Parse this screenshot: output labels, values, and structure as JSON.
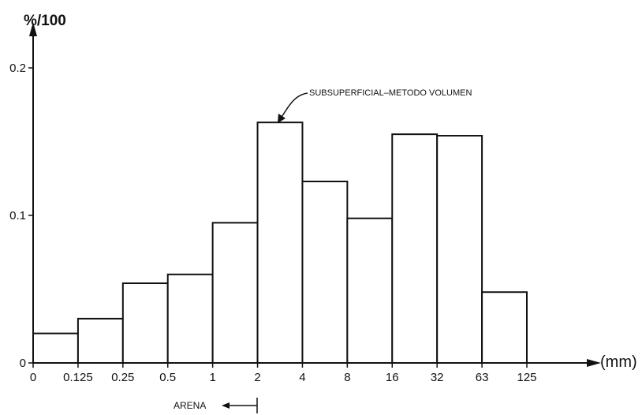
{
  "chart_data": {
    "type": "bar",
    "ylabel": "%/100",
    "xlabel": "(mm)",
    "ylim": [
      0,
      0.2
    ],
    "y_ticks": [
      "0",
      "0.1",
      "0.2"
    ],
    "x_ticks": [
      "0",
      "0.125",
      "0.25",
      "0.5",
      "1",
      "2",
      "4",
      "8",
      "16",
      "32",
      "63",
      "125"
    ],
    "categories": [
      "0–0.125",
      "0.125–0.25",
      "0.25–0.5",
      "0.5–1",
      "1–2",
      "2–4",
      "4–8",
      "8–16",
      "16–32",
      "32–63",
      "63–125"
    ],
    "values": [
      0.02,
      0.03,
      0.054,
      0.06,
      0.095,
      0.163,
      0.123,
      0.098,
      0.155,
      0.154,
      0.048
    ],
    "annotation": "SUBSUPERFICIAL–METODO VOLUMEN",
    "range_label": "ARENA",
    "grid": false
  }
}
